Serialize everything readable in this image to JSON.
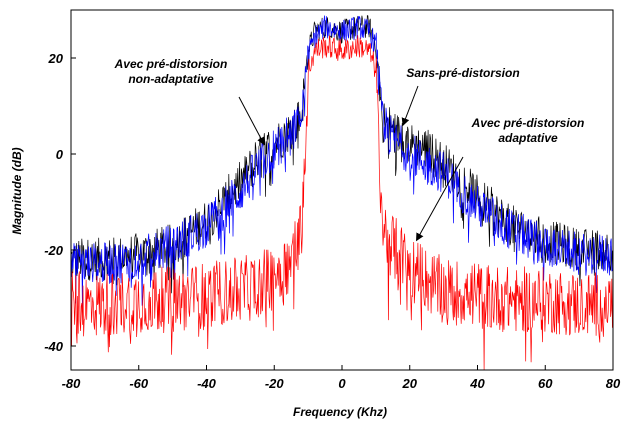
{
  "chart_data": {
    "type": "line",
    "xlabel": "Frequency (Khz)",
    "ylabel": "Magnitude (dB)",
    "xlim": [
      -80,
      80
    ],
    "ylim": [
      -45,
      30
    ],
    "xticks": [
      -80,
      -60,
      -40,
      -20,
      0,
      20,
      40,
      60,
      80
    ],
    "yticks": [
      -40,
      -20,
      0,
      20
    ],
    "grid": false,
    "series": [
      {
        "name": "Sans-pré-distorsion",
        "color": "#000000",
        "x": [
          -80,
          -70,
          -60,
          -50,
          -40,
          -30,
          -25,
          -20,
          -15,
          -12,
          -10,
          -8,
          -5,
          0,
          5,
          8,
          10,
          12,
          15,
          20,
          25,
          30,
          40,
          50,
          60,
          70,
          80
        ],
        "values": [
          -21,
          -21,
          -20,
          -18,
          -13,
          -5,
          0,
          3,
          6,
          9,
          22,
          26,
          27,
          26,
          27,
          27,
          24,
          8,
          6,
          3,
          2,
          -1,
          -8,
          -14,
          -17,
          -19,
          -19
        ]
      },
      {
        "name": "Avec pré-distorsion non-adaptative",
        "color": "#0000ff",
        "x": [
          -80,
          -70,
          -60,
          -50,
          -40,
          -30,
          -25,
          -20,
          -15,
          -12,
          -10,
          -8,
          -5,
          0,
          5,
          8,
          10,
          12,
          15,
          20,
          25,
          30,
          40,
          50,
          60,
          70,
          80
        ],
        "values": [
          -22,
          -22,
          -21,
          -18,
          -14,
          -7,
          -2,
          2,
          5,
          8,
          21,
          25,
          27,
          26,
          27,
          26,
          23,
          7,
          4,
          1,
          -1,
          -3,
          -10,
          -15,
          -18,
          -20,
          -20
        ]
      },
      {
        "name": "Avec pré-distorsion adaptative",
        "color": "#ff0000",
        "x": [
          -80,
          -70,
          -60,
          -50,
          -40,
          -30,
          -25,
          -20,
          -15,
          -12,
          -10,
          -8,
          -5,
          0,
          5,
          8,
          10,
          12,
          15,
          20,
          25,
          30,
          40,
          50,
          60,
          70,
          80
        ],
        "values": [
          -30,
          -30,
          -29,
          -29,
          -28,
          -27,
          -26,
          -24,
          -21,
          -14,
          18,
          22,
          23,
          22,
          23,
          22,
          18,
          -14,
          -18,
          -22,
          -25,
          -27,
          -28,
          -29,
          -29,
          -30,
          -30
        ]
      }
    ],
    "annotations": [
      {
        "lines": [
          "Avec pré-distorsion",
          "non-adaptative"
        ],
        "target_x": -23,
        "target_y": 2
      },
      {
        "lines": [
          "Sans-pré-distorsion"
        ],
        "target_x": 18,
        "target_y": 6
      },
      {
        "lines": [
          "Avec pré-distorsion",
          "adaptative"
        ],
        "target_x": 22,
        "target_y": -18
      }
    ]
  }
}
